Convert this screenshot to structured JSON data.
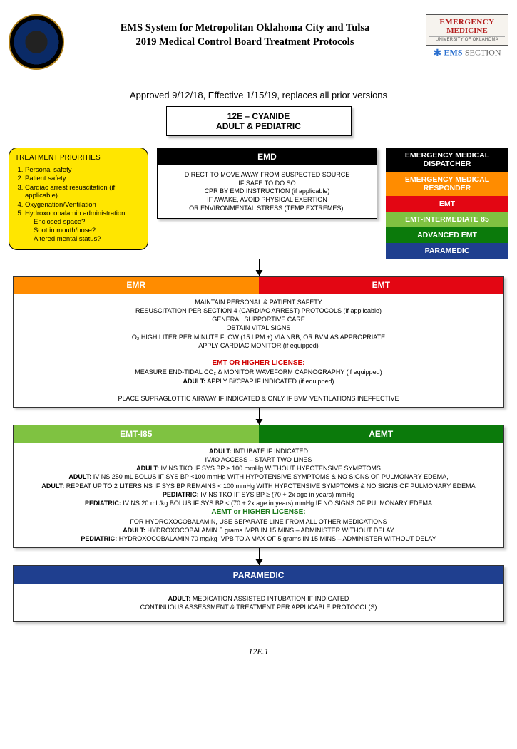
{
  "header": {
    "title_line1": "EMS System for Metropolitan Oklahoma City and Tulsa",
    "title_line2": "2019 Medical Control Board Treatment Protocols",
    "right_logo": {
      "line1": "EMERGENCY",
      "line2": "MEDICINE",
      "sub": "UNIVERSITY OF OKLAHOMA",
      "section": "EMS",
      "section2": "SECTION"
    }
  },
  "approved": "Approved 9/12/18, Effective 1/15/19, replaces all prior versions",
  "protocol": {
    "line1": "12E – CYANIDE",
    "line2": "ADULT & PEDIATRIC"
  },
  "priorities": {
    "heading": "TREATMENT PRIORITIES",
    "items": [
      "Personal safety",
      "Patient safety",
      "Cardiac arrest resuscitation (if applicable)",
      "Oxygenation/Ventilation",
      "Hydroxocobalamin administration"
    ],
    "sub": [
      "Enclosed space?",
      "Soot in mouth/nose?",
      "Altered mental status?"
    ]
  },
  "legend": {
    "items": [
      {
        "label": "EMERGENCY MEDICAL DISPATCHER",
        "bg": "#000000"
      },
      {
        "label": "EMERGENCY MEDICAL RESPONDER",
        "bg": "#ff8c00"
      },
      {
        "label": "EMT",
        "bg": "#e30613"
      },
      {
        "label": "EMT-INTERMEDIATE 85",
        "bg": "#7fc241"
      },
      {
        "label": "ADVANCED EMT",
        "bg": "#0b7a0b"
      },
      {
        "label": "PARAMEDIC",
        "bg": "#1f3f8f"
      }
    ]
  },
  "emd": {
    "head": "EMD",
    "body": [
      "DIRECT TO MOVE AWAY FROM SUSPECTED SOURCE",
      "IF SAFE TO DO SO",
      "CPR BY EMD INSTRUCTION (if applicable)",
      "IF AWAKE, AVOID PHYSICAL EXERTION",
      "OR ENVIRONMENTAL STRESS (TEMP EXTREMES)."
    ]
  },
  "emr_emt": {
    "head_left": "EMR",
    "head_left_bg": "#ff8c00",
    "head_right": "EMT",
    "head_right_bg": "#e30613",
    "body_lines": [
      "MAINTAIN PERSONAL & PATIENT SAFETY",
      "RESUSCITATION PER SECTION 4 (CARDIAC ARREST) PROTOCOLS (if applicable)",
      "GENERAL SUPPORTIVE CARE",
      "OBTAIN VITAL SIGNS",
      "O₂ HIGH LITER PER MINUTE FLOW (15 LPM +) VIA NRB, OR BVM AS APPROPRIATE",
      "APPLY CARDIAC MONITOR (if equipped)"
    ],
    "license_hdr": "EMT OR HIGHER LICENSE:",
    "license_lines": [
      "MEASURE END-TIDAL CO₂ & MONITOR WAVEFORM CAPNOGRAPHY (if equipped)",
      "<b>ADULT:</b>  APPLY Bi/CPAP IF INDICATED (if equipped)"
    ],
    "footer": "PLACE SUPRAGLOTTIC AIRWAY IF INDICATED & ONLY IF BVM VENTILATIONS INEFFECTIVE"
  },
  "i85_aemt": {
    "head_left": "EMT-I85",
    "head_left_bg": "#7fc241",
    "head_right": "AEMT",
    "head_right_bg": "#0b7a0b",
    "body_lines": [
      "<b>ADULT:</b>  INTUBATE IF INDICATED",
      "IV/IO ACCESS – START TWO LINES",
      "<b>ADULT:</b>  IV NS TKO IF SYS BP ≥ 100 mmHg WITHOUT HYPOTENSIVE SYMPTOMS",
      "<b>ADULT:</b>  IV NS 250 mL BOLUS IF SYS BP <100 mmHg WITH HYPOTENSIVE SYMPTOMS & NO SIGNS OF PULMONARY EDEMA,",
      "<b>ADULT:</b>  REPEAT UP TO 2 LITERS NS IF SYS BP REMAINS < 100 mmHg WITH HYPOTENSIVE SYMPTOMS & NO SIGNS OF PULMONARY EDEMA",
      "<b>PEDIATRIC:</b>  IV NS TKO IF SYS BP ≥ (70 + 2x age in years) mmHg",
      "<b>PEDIATRIC:</b>  IV NS 20 mL/kg BOLUS IF SYS BP < (70 + 2x age in years) mmHg IF NO SIGNS OF PULMONARY EDEMA"
    ],
    "license_hdr": "AEMT or HIGHER LICENSE:",
    "license_lines": [
      "FOR HYDROXOCOBALAMIN, USE SEPARATE LINE FROM ALL OTHER MEDICATIONS",
      "<b>ADULT:</b>  HYDROXOCOBALAMIN 5 grams IVPB IN 15 MINS – ADMINISTER WITHOUT DELAY",
      "<b>PEDIATRIC:</b> HYDROXOCOBALAMIN  70 mg/kg IVPB TO A MAX OF 5 grams IN 15 MINS – ADMINISTER WITHOUT DELAY"
    ]
  },
  "paramedic": {
    "head": "PARAMEDIC",
    "body_lines": [
      "<b>ADULT:</b>  MEDICATION ASSISTED INTUBATION IF INDICATED",
      "CONTINUOUS ASSESSMENT & TREATMENT PER APPLICABLE PROTOCOL(S)"
    ]
  },
  "page_number": "12E.1"
}
